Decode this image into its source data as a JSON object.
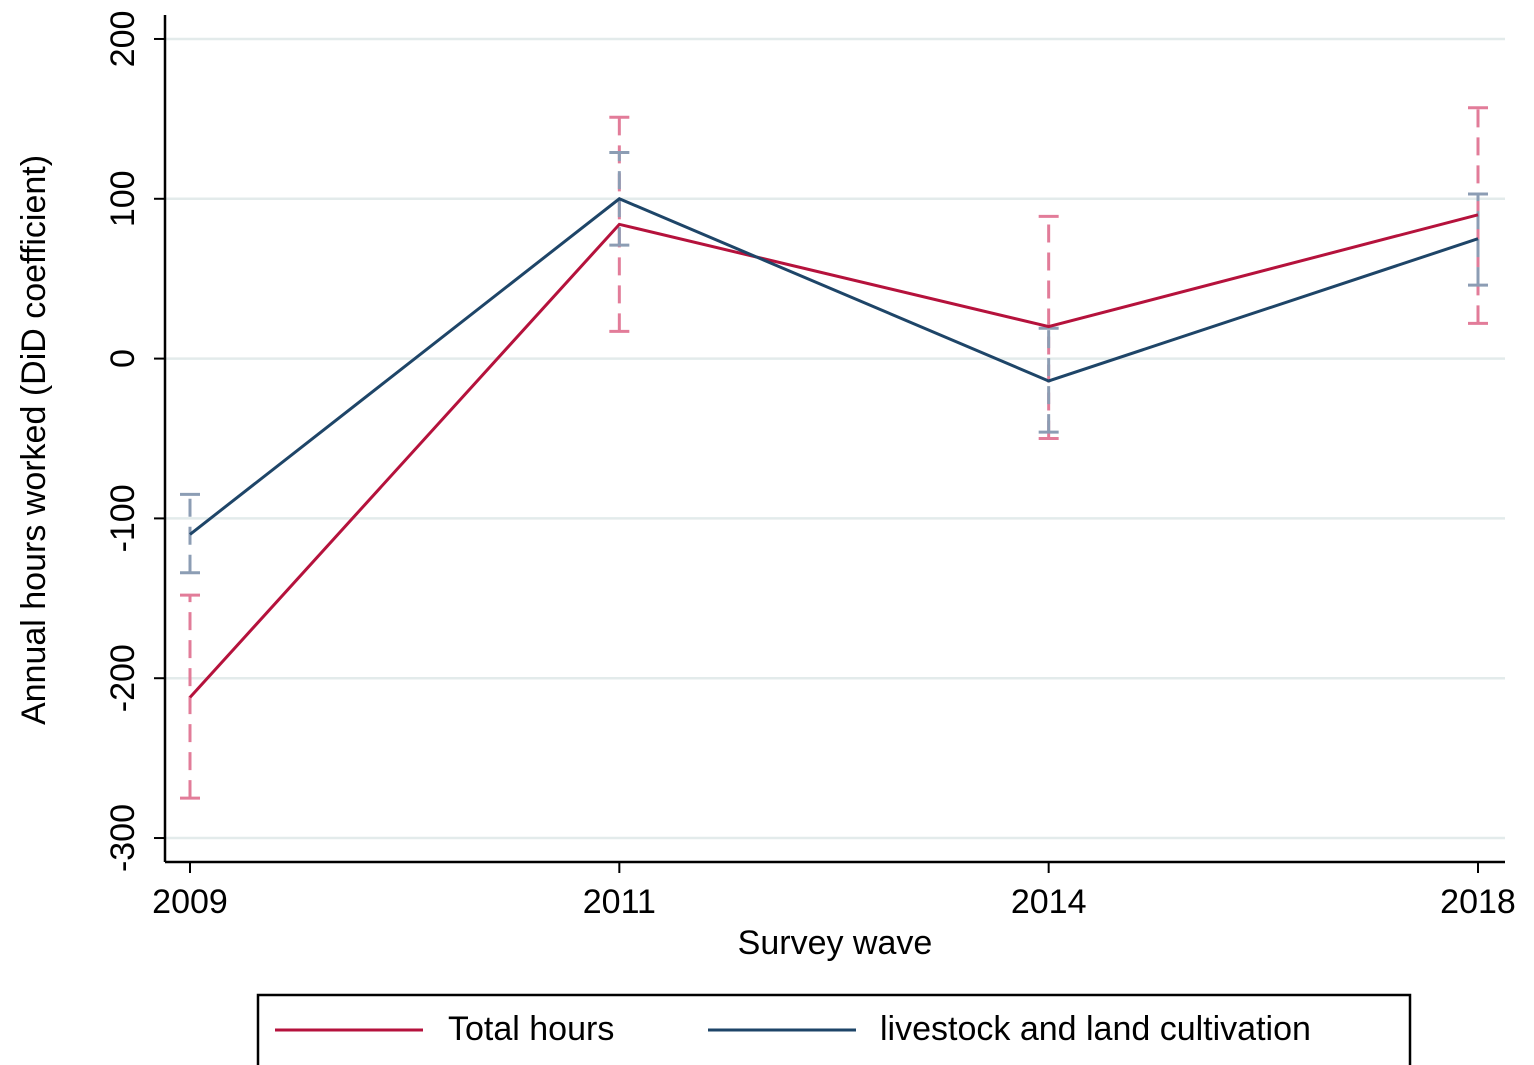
{
  "chart_data": {
    "type": "line",
    "x_label": "Survey wave",
    "y_label": "Annual hours worked (DiD coefficient)",
    "categories": [
      "2009",
      "2011",
      "2014",
      "2018"
    ],
    "series": [
      {
        "name": "Total hours",
        "color": "#b5123c",
        "error_color": "#e27c99",
        "values": [
          -212,
          84,
          20,
          90
        ],
        "ci_low": [
          -275,
          17,
          -50,
          22
        ],
        "ci_high": [
          -148,
          151,
          89,
          157
        ]
      },
      {
        "name": "livestock and land cultivation",
        "color": "#1e4568",
        "error_color": "#8c9db4",
        "values": [
          -110,
          100,
          -14,
          75
        ],
        "ci_low": [
          -134,
          71,
          -46,
          46
        ],
        "ci_high": [
          -85,
          129,
          19,
          103
        ]
      }
    ],
    "ylim": [
      -315,
      215
    ],
    "yticks": [
      -300,
      -200,
      -100,
      0,
      100,
      200
    ],
    "grid": true,
    "legend": "bottom"
  }
}
